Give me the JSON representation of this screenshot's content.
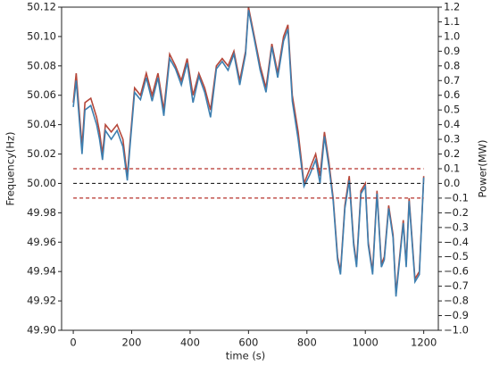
{
  "chart_data": {
    "type": "line",
    "xlabel": "time (s)",
    "ylabel": "Frequency(Hz)",
    "y2label": "Power(MW)",
    "x": [
      0,
      10,
      20,
      30,
      40,
      60,
      80,
      90,
      100,
      110,
      130,
      150,
      170,
      185,
      195,
      210,
      230,
      250,
      270,
      290,
      310,
      330,
      350,
      370,
      390,
      410,
      430,
      450,
      470,
      490,
      510,
      530,
      550,
      570,
      590,
      600,
      620,
      640,
      660,
      680,
      700,
      720,
      735,
      750,
      770,
      790,
      810,
      830,
      845,
      860,
      875,
      890,
      905,
      915,
      930,
      945,
      960,
      970,
      985,
      1000,
      1010,
      1025,
      1040,
      1055,
      1065,
      1080,
      1095,
      1105,
      1115,
      1130,
      1140,
      1150,
      1170,
      1185,
      1200
    ],
    "series": [
      {
        "color": "#b5473a",
        "values": [
          50.055,
          50.075,
          50.05,
          50.025,
          50.055,
          50.058,
          50.045,
          50.035,
          50.02,
          50.04,
          50.035,
          50.04,
          50.03,
          50.005,
          50.03,
          50.065,
          50.06,
          50.075,
          50.06,
          50.075,
          50.05,
          50.088,
          50.08,
          50.07,
          50.085,
          50.06,
          50.075,
          50.065,
          50.05,
          50.08,
          50.085,
          50.08,
          50.09,
          50.07,
          50.09,
          50.12,
          50.1,
          50.08,
          50.065,
          50.095,
          50.075,
          50.1,
          50.108,
          50.06,
          50.035,
          50.0,
          50.01,
          50.02,
          50.005,
          50.035,
          50.015,
          49.99,
          49.95,
          49.94,
          49.985,
          50.005,
          49.96,
          49.945,
          49.995,
          50.0,
          49.96,
          49.94,
          49.995,
          49.945,
          49.95,
          49.985,
          49.965,
          49.925,
          49.945,
          49.975,
          49.945,
          49.99,
          49.935,
          49.94,
          50.005
        ]
      },
      {
        "color": "#3d7fb0",
        "axis": "y2",
        "values": [
          0.52,
          0.7,
          0.45,
          0.2,
          0.5,
          0.53,
          0.4,
          0.3,
          0.16,
          0.36,
          0.3,
          0.36,
          0.25,
          0.02,
          0.27,
          0.62,
          0.57,
          0.72,
          0.56,
          0.72,
          0.46,
          0.85,
          0.78,
          0.67,
          0.82,
          0.55,
          0.73,
          0.62,
          0.45,
          0.78,
          0.83,
          0.77,
          0.88,
          0.67,
          0.88,
          1.18,
          0.98,
          0.77,
          0.62,
          0.93,
          0.72,
          0.97,
          1.05,
          0.56,
          0.3,
          -0.02,
          0.06,
          0.16,
          0.0,
          0.32,
          0.12,
          -0.12,
          -0.52,
          -0.62,
          -0.17,
          0.02,
          -0.42,
          -0.57,
          -0.07,
          -0.02,
          -0.42,
          -0.62,
          -0.07,
          -0.57,
          -0.52,
          -0.17,
          -0.37,
          -0.77,
          -0.57,
          -0.27,
          -0.57,
          -0.12,
          -0.67,
          -0.62,
          0.04
        ]
      }
    ],
    "reference_lines": [
      {
        "value": 50.01,
        "color": "#b5302a"
      },
      {
        "value": 50.0,
        "color": "#222222"
      },
      {
        "value": 49.99,
        "color": "#b5302a"
      }
    ],
    "ylabel_color": "#9a4a3a",
    "y2label_color": "#3d7fb0",
    "xlim": [
      -40,
      1250
    ],
    "xticks": [
      0,
      200,
      400,
      600,
      800,
      1000,
      1200
    ],
    "ylim": [
      49.9,
      50.12
    ],
    "yticks": [
      {
        "value": 49.9,
        "label": "49.90"
      },
      {
        "value": 49.92,
        "label": "49.92"
      },
      {
        "value": 49.94,
        "label": "49.94"
      },
      {
        "value": 49.96,
        "label": "49.96"
      },
      {
        "value": 49.98,
        "label": "49.98"
      },
      {
        "value": 50.0,
        "label": "50.00"
      },
      {
        "value": 50.02,
        "label": "50.02"
      },
      {
        "value": 50.04,
        "label": "50.04"
      },
      {
        "value": 50.06,
        "label": "50.06"
      },
      {
        "value": 50.08,
        "label": "50.08"
      },
      {
        "value": 50.1,
        "label": "50.10"
      },
      {
        "value": 50.12,
        "label": "50.12"
      }
    ],
    "y2lim": [
      -1.0,
      1.2
    ],
    "y2ticks": [
      {
        "value": -1.0,
        "label": "−1.0"
      },
      {
        "value": -0.9,
        "label": "−0.9"
      },
      {
        "value": -0.8,
        "label": "−0.8"
      },
      {
        "value": -0.7,
        "label": "−0.7"
      },
      {
        "value": -0.6,
        "label": "−0.6"
      },
      {
        "value": -0.5,
        "label": "−0.5"
      },
      {
        "value": -0.4,
        "label": "−0.4"
      },
      {
        "value": -0.3,
        "label": "−0.3"
      },
      {
        "value": -0.2,
        "label": "−0.2"
      },
      {
        "value": -0.1,
        "label": "−0.1"
      },
      {
        "value": 0.0,
        "label": "0.0"
      },
      0.1,
      0.2,
      0.3,
      0.4,
      0.5,
      0.6,
      0.7,
      0.8,
      0.9,
      {
        "value": 1.0,
        "label": "1.0"
      },
      1.1,
      1.2
    ]
  }
}
